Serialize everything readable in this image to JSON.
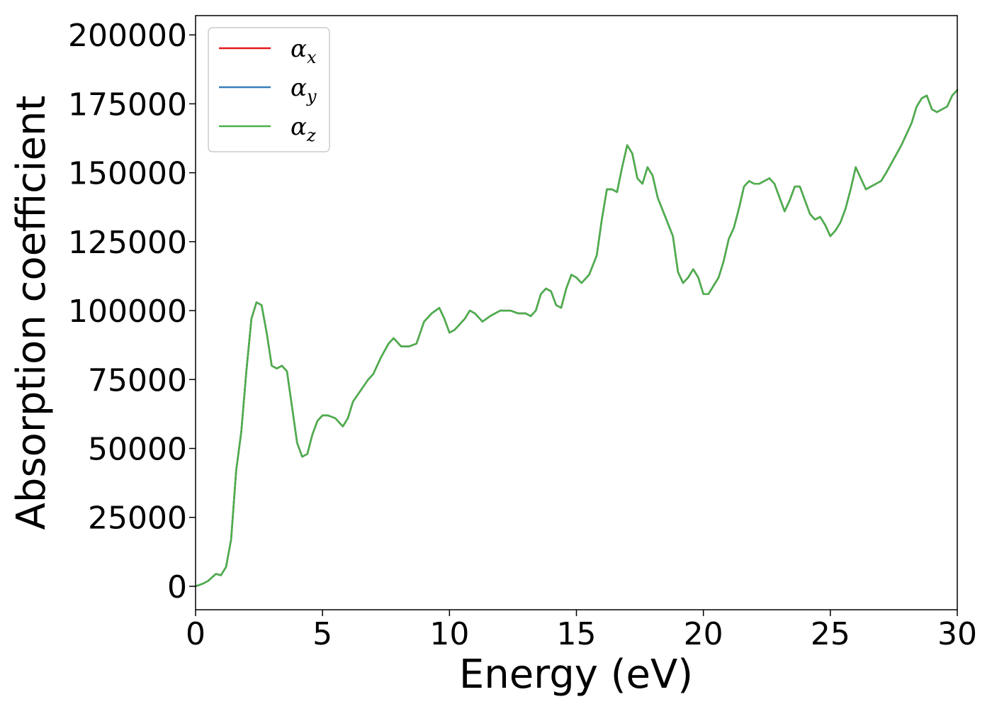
{
  "chart_data": {
    "type": "line",
    "title": "",
    "xlabel": "Energy (eV)",
    "ylabel": "Absorption coefficient",
    "xlim": [
      0,
      30
    ],
    "ylim": [
      -8500,
      207000
    ],
    "xticks": [
      0,
      5,
      10,
      15,
      20,
      25,
      30
    ],
    "xtick_labels": [
      "0",
      "5",
      "10",
      "15",
      "20",
      "25",
      "30"
    ],
    "yticks": [
      0,
      25000,
      50000,
      75000,
      100000,
      125000,
      150000,
      175000,
      200000
    ],
    "ytick_labels": [
      "0",
      "25000",
      "50000",
      "75000",
      "100000",
      "125000",
      "150000",
      "175000",
      "200000"
    ],
    "grid": false,
    "legend_position": "top-left",
    "x": [
      0,
      0.3,
      0.5,
      0.8,
      1.0,
      1.2,
      1.4,
      1.6,
      1.8,
      2.0,
      2.2,
      2.4,
      2.6,
      2.8,
      3.0,
      3.2,
      3.4,
      3.6,
      3.8,
      4.0,
      4.2,
      4.4,
      4.6,
      4.8,
      5.0,
      5.2,
      5.5,
      5.8,
      6.0,
      6.2,
      6.5,
      6.8,
      7.0,
      7.3,
      7.6,
      7.8,
      8.1,
      8.4,
      8.7,
      9.0,
      9.3,
      9.6,
      9.8,
      10.0,
      10.2,
      10.4,
      10.6,
      10.8,
      11.0,
      11.3,
      11.6,
      12.0,
      12.4,
      12.7,
      13.0,
      13.2,
      13.4,
      13.6,
      13.8,
      14.0,
      14.2,
      14.4,
      14.6,
      14.8,
      15.0,
      15.2,
      15.5,
      15.8,
      16.0,
      16.2,
      16.4,
      16.6,
      16.8,
      17.0,
      17.2,
      17.4,
      17.6,
      17.8,
      18.0,
      18.2,
      18.5,
      18.8,
      19.0,
      19.2,
      19.4,
      19.6,
      19.8,
      20.0,
      20.2,
      20.4,
      20.6,
      20.8,
      21.0,
      21.2,
      21.4,
      21.6,
      21.8,
      22.0,
      22.2,
      22.4,
      22.6,
      22.8,
      23.0,
      23.2,
      23.4,
      23.6,
      23.8,
      24.0,
      24.2,
      24.4,
      24.6,
      24.8,
      25.0,
      25.2,
      25.4,
      25.6,
      25.8,
      26.0,
      26.2,
      26.4,
      26.6,
      26.8,
      27.0,
      27.2,
      27.5,
      27.8,
      28.0,
      28.2,
      28.4,
      28.6,
      28.8,
      29.0,
      29.2,
      29.4,
      29.6,
      29.8,
      30.0
    ],
    "series": [
      {
        "name": "α_x",
        "color": "#e41a1c",
        "y": [
          0,
          1000,
          2000,
          4500,
          4000,
          7000,
          17000,
          42000,
          56000,
          78000,
          97000,
          103000,
          102000,
          92000,
          80000,
          79000,
          80000,
          78000,
          65000,
          52000,
          47000,
          48000,
          55000,
          60000,
          62000,
          62000,
          61000,
          58000,
          61000,
          67000,
          71000,
          75000,
          77000,
          83000,
          88000,
          90000,
          87000,
          87000,
          88000,
          96000,
          99000,
          101000,
          97000,
          92000,
          93000,
          95000,
          97000,
          100000,
          99000,
          96000,
          98000,
          100000,
          100000,
          99000,
          99000,
          98000,
          100000,
          106000,
          108000,
          107000,
          102000,
          101000,
          108000,
          113000,
          112000,
          110000,
          113000,
          120000,
          133000,
          144000,
          144000,
          143000,
          152000,
          160000,
          157000,
          148000,
          146000,
          152000,
          149000,
          141000,
          134000,
          127000,
          114000,
          110000,
          112000,
          115000,
          112000,
          106000,
          106000,
          109000,
          112000,
          118000,
          126000,
          130000,
          137000,
          145000,
          147000,
          146000,
          146000,
          147000,
          148000,
          146000,
          141000,
          136000,
          140000,
          145000,
          145000,
          140000,
          135000,
          133000,
          134000,
          131000,
          127000,
          129000,
          132000,
          137000,
          144000,
          152000,
          148000,
          144000,
          145000,
          146000,
          147000,
          150000,
          155000,
          160000,
          164000,
          168000,
          174000,
          177000,
          178000,
          173000,
          172000,
          173000,
          174000,
          178000,
          180000
        ]
      },
      {
        "name": "α_y",
        "color": "#377eb8",
        "y": [
          0,
          1000,
          2000,
          4500,
          4000,
          7000,
          17000,
          42000,
          56000,
          78000,
          97000,
          103000,
          102000,
          92000,
          80000,
          79000,
          80000,
          78000,
          65000,
          52000,
          47000,
          48000,
          55000,
          60000,
          62000,
          62000,
          61000,
          58000,
          61000,
          67000,
          71000,
          75000,
          77000,
          83000,
          88000,
          90000,
          87000,
          87000,
          88000,
          96000,
          99000,
          101000,
          97000,
          92000,
          93000,
          95000,
          97000,
          100000,
          99000,
          96000,
          98000,
          100000,
          100000,
          99000,
          99000,
          98000,
          100000,
          106000,
          108000,
          107000,
          102000,
          101000,
          108000,
          113000,
          112000,
          110000,
          113000,
          120000,
          133000,
          144000,
          144000,
          143000,
          152000,
          160000,
          157000,
          148000,
          146000,
          152000,
          149000,
          141000,
          134000,
          127000,
          114000,
          110000,
          112000,
          115000,
          112000,
          106000,
          106000,
          109000,
          112000,
          118000,
          126000,
          130000,
          137000,
          145000,
          147000,
          146000,
          146000,
          147000,
          148000,
          146000,
          141000,
          136000,
          140000,
          145000,
          145000,
          140000,
          135000,
          133000,
          134000,
          131000,
          127000,
          129000,
          132000,
          137000,
          144000,
          152000,
          148000,
          144000,
          145000,
          146000,
          147000,
          150000,
          155000,
          160000,
          164000,
          168000,
          174000,
          177000,
          178000,
          173000,
          172000,
          173000,
          174000,
          178000,
          180000
        ]
      },
      {
        "name": "α_z",
        "color": "#4daf4a",
        "y": [
          0,
          1000,
          2000,
          4500,
          4000,
          7000,
          17000,
          42000,
          56000,
          78000,
          97000,
          103000,
          102000,
          92000,
          80000,
          79000,
          80000,
          78000,
          65000,
          52000,
          47000,
          48000,
          55000,
          60000,
          62000,
          62000,
          61000,
          58000,
          61000,
          67000,
          71000,
          75000,
          77000,
          83000,
          88000,
          90000,
          87000,
          87000,
          88000,
          96000,
          99000,
          101000,
          97000,
          92000,
          93000,
          95000,
          97000,
          100000,
          99000,
          96000,
          98000,
          100000,
          100000,
          99000,
          99000,
          98000,
          100000,
          106000,
          108000,
          107000,
          102000,
          101000,
          108000,
          113000,
          112000,
          110000,
          113000,
          120000,
          133000,
          144000,
          144000,
          143000,
          152000,
          160000,
          157000,
          148000,
          146000,
          152000,
          149000,
          141000,
          134000,
          127000,
          114000,
          110000,
          112000,
          115000,
          112000,
          106000,
          106000,
          109000,
          112000,
          118000,
          126000,
          130000,
          137000,
          145000,
          147000,
          146000,
          146000,
          147000,
          148000,
          146000,
          141000,
          136000,
          140000,
          145000,
          145000,
          140000,
          135000,
          133000,
          134000,
          131000,
          127000,
          129000,
          132000,
          137000,
          144000,
          152000,
          148000,
          144000,
          145000,
          146000,
          147000,
          150000,
          155000,
          160000,
          164000,
          168000,
          174000,
          177000,
          178000,
          173000,
          172000,
          173000,
          174000,
          178000,
          180000
        ]
      }
    ]
  }
}
